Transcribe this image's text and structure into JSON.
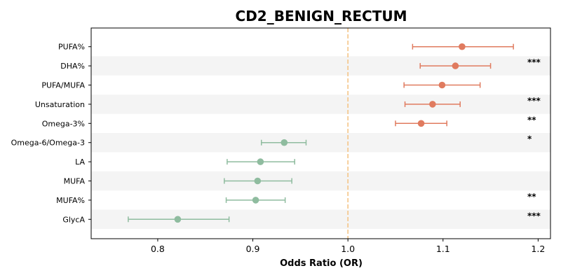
{
  "chart_data": {
    "type": "forest",
    "title": "CD2_BENIGN_RECTUM",
    "xlabel": "Odds Ratio (OR)",
    "xlim": [
      0.73,
      1.213
    ],
    "xticks": [
      0.8,
      0.9,
      1.0,
      1.1,
      1.2
    ],
    "xtick_labels": [
      "0.8",
      "0.9",
      "1.0",
      "1.1",
      "1.2"
    ],
    "reference_line": 1.0,
    "grid": false,
    "colors": {
      "positive": "#e07b5f",
      "negative": "#8fbc9f",
      "reference": "#f5c587",
      "stripe": "#f4f4f4"
    },
    "rows": [
      {
        "label": "PUFA%",
        "or": 1.12,
        "lo": 1.068,
        "hi": 1.174,
        "sig": ""
      },
      {
        "label": "DHA%",
        "or": 1.113,
        "lo": 1.076,
        "hi": 1.15,
        "sig": "***"
      },
      {
        "label": "PUFA/MUFA",
        "or": 1.099,
        "lo": 1.059,
        "hi": 1.139,
        "sig": ""
      },
      {
        "label": "Unsaturation",
        "or": 1.089,
        "lo": 1.06,
        "hi": 1.118,
        "sig": "***"
      },
      {
        "label": "Omega-3%",
        "or": 1.077,
        "lo": 1.05,
        "hi": 1.104,
        "sig": "**"
      },
      {
        "label": "Omega-6/Omega-3",
        "or": 0.933,
        "lo": 0.909,
        "hi": 0.956,
        "sig": "*"
      },
      {
        "label": "LA",
        "or": 0.908,
        "lo": 0.873,
        "hi": 0.944,
        "sig": ""
      },
      {
        "label": "MUFA",
        "or": 0.905,
        "lo": 0.87,
        "hi": 0.941,
        "sig": ""
      },
      {
        "label": "MUFA%",
        "or": 0.903,
        "lo": 0.872,
        "hi": 0.934,
        "sig": "**"
      },
      {
        "label": "GlycA",
        "or": 0.821,
        "lo": 0.769,
        "hi": 0.875,
        "sig": "***"
      }
    ]
  }
}
